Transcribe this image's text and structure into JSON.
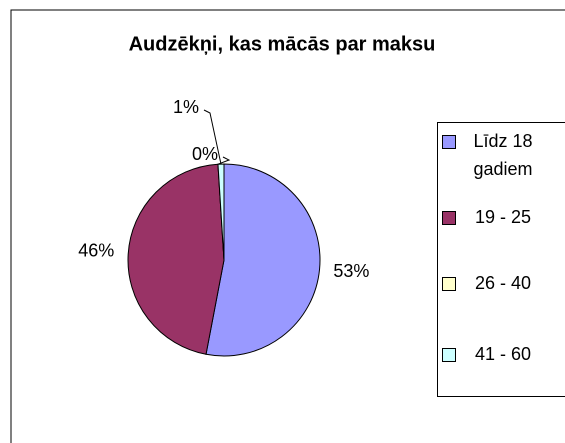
{
  "chart_data": {
    "type": "pie",
    "title": "Audzēkņi, kas mācās par maksu",
    "categories": [
      "Līdz 18 gadiem",
      "19 - 25",
      "26 - 40",
      "41 - 60"
    ],
    "values": [
      53,
      46,
      0,
      1
    ],
    "value_labels": [
      "53%",
      "46%",
      "0%",
      "1%"
    ],
    "colors": [
      "#9999ff",
      "#993366",
      "#ffffcc",
      "#ccffff"
    ],
    "legend": "right"
  }
}
